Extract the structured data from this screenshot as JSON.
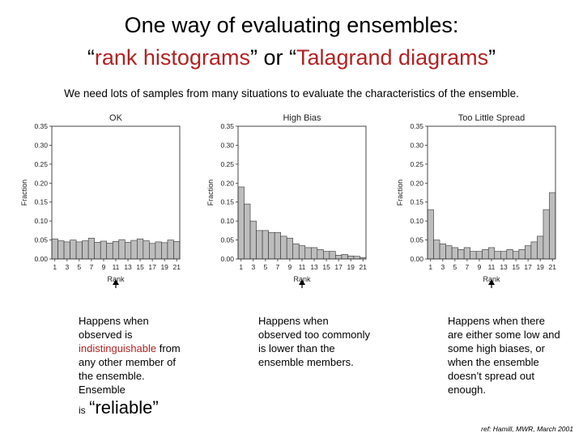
{
  "slide": {
    "title_line1": "One way of evaluating ensembles:",
    "title_line2_open": "“",
    "title_term1": "rank histograms",
    "title_mid": "” or “",
    "title_term2": "Talagrand diagrams",
    "title_close": "”",
    "intro": "We need lots of samples from many situations to evaluate the characteristics of the ensemble.",
    "descriptions": [
      {
        "pre": "Happens when observed is ",
        "highlight": "indistinguishable",
        "post": " from any other member of the ensemble. Ensemble"
      },
      {
        "text": "Happens when observed too commonly is lower than the ensemble members."
      },
      {
        "text": "Happens when there are either some low and some high biases, or when the ensemble doesn’t spread out enough."
      }
    ],
    "reliable_prefix": "is",
    "reliable_word": "“reliable”",
    "reference": "ref: Hamill, MWR, March 2001",
    "highlight_color": "#b22222"
  },
  "chart_data": [
    {
      "type": "bar",
      "title": "OK",
      "xlabel": "Rank",
      "ylabel": "Fraction",
      "ylim": [
        0,
        0.35
      ],
      "yticks": [
        "0.00",
        "0.05",
        "0.10",
        "0.15",
        "0.20",
        "0.25",
        "0.30",
        "0.35"
      ],
      "xticks": [
        "1",
        "3",
        "5",
        "7",
        "9",
        "11",
        "13",
        "15",
        "17",
        "19",
        "21"
      ],
      "categories": [
        "1",
        "2",
        "3",
        "4",
        "5",
        "6",
        "7",
        "8",
        "9",
        "10",
        "11",
        "12",
        "13",
        "14",
        "15",
        "16",
        "17",
        "18",
        "19",
        "20",
        "21"
      ],
      "values": [
        0.053,
        0.048,
        0.045,
        0.05,
        0.045,
        0.048,
        0.055,
        0.044,
        0.047,
        0.042,
        0.046,
        0.051,
        0.044,
        0.049,
        0.053,
        0.048,
        0.041,
        0.045,
        0.043,
        0.05,
        0.046
      ],
      "bar_color": "#bdbdbd"
    },
    {
      "type": "bar",
      "title": "High Bias",
      "xlabel": "Rank",
      "ylabel": "Fraction",
      "ylim": [
        0,
        0.35
      ],
      "yticks": [
        "0.00",
        "0.05",
        "0.10",
        "0.15",
        "0.20",
        "0.25",
        "0.30",
        "0.35"
      ],
      "xticks": [
        "1",
        "3",
        "5",
        "7",
        "9",
        "11",
        "13",
        "15",
        "17",
        "19",
        "21"
      ],
      "categories": [
        "1",
        "2",
        "3",
        "4",
        "5",
        "6",
        "7",
        "8",
        "9",
        "10",
        "11",
        "12",
        "13",
        "14",
        "15",
        "16",
        "17",
        "18",
        "19",
        "20",
        "21"
      ],
      "values": [
        0.19,
        0.145,
        0.1,
        0.075,
        0.075,
        0.07,
        0.07,
        0.06,
        0.055,
        0.04,
        0.035,
        0.03,
        0.03,
        0.025,
        0.02,
        0.02,
        0.01,
        0.012,
        0.008,
        0.007,
        0.004
      ],
      "bar_color": "#bdbdbd"
    },
    {
      "type": "bar",
      "title": "Too Little Spread",
      "xlabel": "Rank",
      "ylabel": "Fraction",
      "ylim": [
        0,
        0.35
      ],
      "yticks": [
        "0.00",
        "0.05",
        "0.10",
        "0.15",
        "0.20",
        "0.25",
        "0.30",
        "0.35"
      ],
      "xticks": [
        "1",
        "3",
        "5",
        "7",
        "9",
        "11",
        "13",
        "15",
        "17",
        "19",
        "21"
      ],
      "categories": [
        "1",
        "2",
        "3",
        "4",
        "5",
        "6",
        "7",
        "8",
        "9",
        "10",
        "11",
        "12",
        "13",
        "14",
        "15",
        "16",
        "17",
        "18",
        "19",
        "20",
        "21"
      ],
      "values": [
        0.13,
        0.05,
        0.04,
        0.035,
        0.03,
        0.025,
        0.03,
        0.02,
        0.02,
        0.025,
        0.03,
        0.02,
        0.02,
        0.025,
        0.02,
        0.025,
        0.035,
        0.045,
        0.06,
        0.13,
        0.175
      ],
      "bar_color": "#bdbdbd"
    }
  ]
}
